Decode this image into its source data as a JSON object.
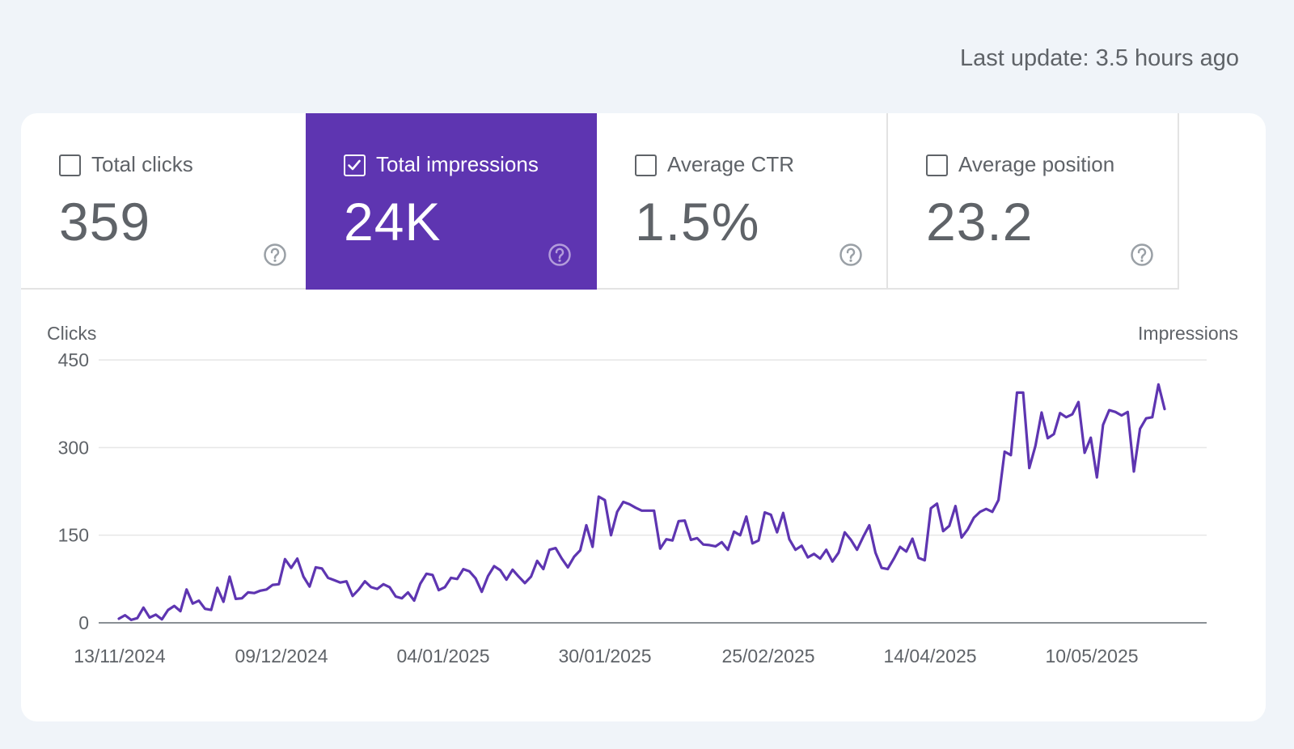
{
  "header": {
    "last_update": "Last update: 3.5 hours ago"
  },
  "metrics": [
    {
      "label": "Total clicks",
      "value": "359",
      "checked": false,
      "icon": "help-circle-icon"
    },
    {
      "label": "Total impressions",
      "value": "24K",
      "checked": true,
      "icon": "help-circle-icon"
    },
    {
      "label": "Average CTR",
      "value": "1.5%",
      "checked": false,
      "icon": "help-circle-icon"
    },
    {
      "label": "Average position",
      "value": "23.2",
      "checked": false,
      "icon": "help-circle-icon"
    }
  ],
  "colors": {
    "accent": "#5e35b1",
    "line": "#5e35b1",
    "background": "#f0f4f9"
  },
  "chart_data": {
    "type": "line",
    "ylabel_left": "Clicks",
    "ylabel_right": "Impressions",
    "yticks": [
      "0",
      "150",
      "300",
      "450"
    ],
    "ylim": [
      0,
      450
    ],
    "xticks": [
      "13/11/2024",
      "09/12/2024",
      "04/01/2025",
      "30/01/2025",
      "25/02/2025",
      "14/04/2025",
      "10/05/2025"
    ],
    "grid": true,
    "series": [
      {
        "values": [
          7,
          13,
          5,
          8,
          26,
          9,
          14,
          6,
          22,
          29,
          20,
          57,
          33,
          38,
          24,
          22,
          60,
          36,
          79,
          41,
          42,
          52,
          51,
          55,
          57,
          65,
          66,
          109,
          94,
          110,
          79,
          62,
          95,
          93,
          77,
          73,
          69,
          71,
          46,
          57,
          71,
          61,
          58,
          66,
          61,
          45,
          42,
          52,
          38,
          67,
          84,
          82,
          56,
          61,
          77,
          75,
          92,
          88,
          76,
          53,
          80,
          97,
          90,
          74,
          91,
          79,
          68,
          79,
          106,
          92,
          125,
          128,
          110,
          95,
          113,
          124,
          167,
          130,
          216,
          210,
          150,
          190,
          207,
          203,
          197,
          192,
          192,
          192,
          127,
          143,
          141,
          174,
          175,
          142,
          145,
          134,
          133,
          131,
          138,
          125,
          156,
          150,
          182,
          136,
          141,
          189,
          185,
          155,
          188,
          143,
          125,
          132,
          112,
          118,
          110,
          125,
          105,
          120,
          155,
          142,
          125,
          147,
          167,
          120,
          94,
          92,
          110,
          130,
          122,
          144,
          111,
          107,
          196,
          204,
          157,
          166,
          200,
          146,
          160,
          180,
          190,
          195,
          190,
          210,
          293,
          287,
          394,
          394,
          265,
          303,
          360,
          316,
          323,
          359,
          352,
          357,
          378,
          291,
          317,
          249,
          339,
          364,
          361,
          355,
          361,
          259,
          332,
          350,
          352,
          408,
          366
        ]
      }
    ]
  }
}
